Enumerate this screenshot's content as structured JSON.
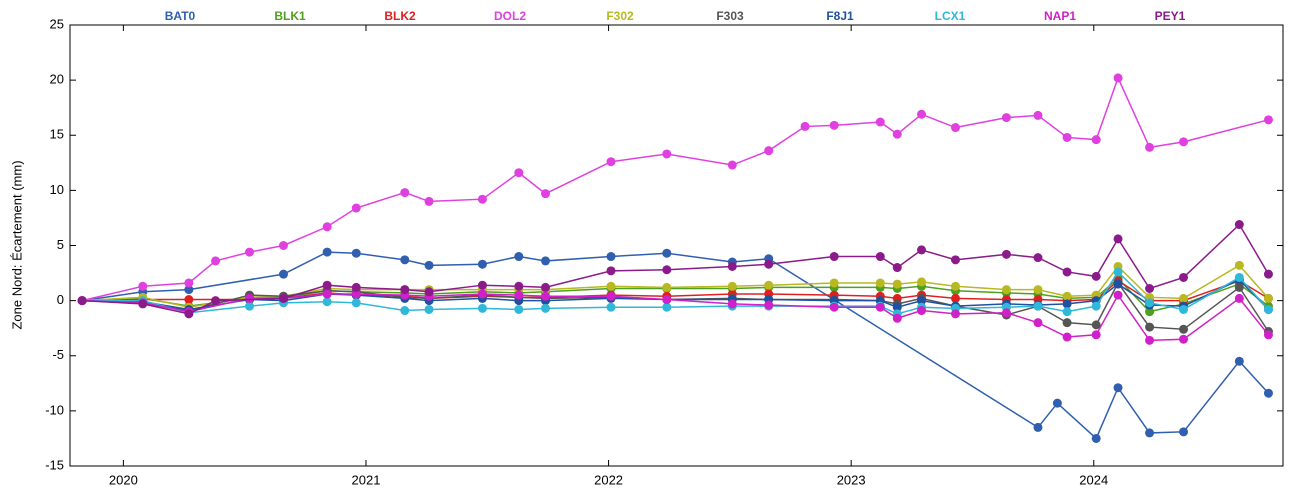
{
  "chart_data": {
    "type": "line",
    "ylabel": "Zone Nord: Écartement (mm)",
    "xlim": [
      2019.78,
      2024.78
    ],
    "xticks": [
      2020,
      2021,
      2022,
      2023,
      2024
    ],
    "ylim": [
      -15,
      25
    ],
    "yticks": [
      -15,
      -10,
      -5,
      0,
      5,
      10,
      15,
      20,
      25
    ],
    "grid": false,
    "legend": "top",
    "series": [
      {
        "name": "BAT0",
        "color": "#2f5fae",
        "x": [
          2019.83,
          2020.08,
          2020.27,
          2020.66,
          2020.84,
          2020.96,
          2021.16,
          2021.26,
          2021.48,
          2021.63,
          2021.74,
          2022.01,
          2022.24,
          2022.51,
          2022.66,
          2023.77,
          2023.85,
          2024.01,
          2024.1,
          2024.23,
          2024.37,
          2024.6,
          2024.72
        ],
        "values": [
          0,
          0.8,
          1.0,
          2.4,
          4.4,
          4.3,
          3.7,
          3.2,
          3.3,
          4.0,
          3.6,
          4.0,
          4.3,
          3.5,
          3.8,
          -11.5,
          -9.3,
          -12.5,
          -7.9,
          -12.0,
          -11.9,
          -5.5,
          -8.4
        ]
      },
      {
        "name": "BLK1",
        "color": "#4fa020",
        "x": [
          2019.83,
          2020.08,
          2020.27,
          2020.52,
          2020.66,
          2020.84,
          2020.96,
          2021.16,
          2021.26,
          2021.48,
          2021.63,
          2021.74,
          2022.01,
          2022.24,
          2022.51,
          2022.66,
          2022.93,
          2023.12,
          2023.19,
          2023.29,
          2023.43,
          2023.64,
          2023.77,
          2023.89,
          2024.01,
          2024.1,
          2024.23,
          2024.37,
          2024.6,
          2024.72
        ],
        "values": [
          0,
          0.2,
          -0.5,
          0.2,
          0.3,
          0.9,
          0.8,
          0.7,
          0.6,
          0.8,
          0.7,
          0.8,
          1.1,
          1.1,
          1.1,
          1.2,
          1.2,
          1.2,
          1.1,
          1.3,
          0.9,
          0.7,
          0.6,
          0.2,
          0.3,
          2.0,
          -1.0,
          -0.3,
          1.5,
          -0.5
        ]
      },
      {
        "name": "BLK2",
        "color": "#e02020",
        "x": [
          2019.83,
          2020.08,
          2020.27,
          2020.52,
          2020.66,
          2020.84,
          2020.96,
          2021.16,
          2021.26,
          2021.48,
          2021.63,
          2021.74,
          2022.01,
          2022.24,
          2022.51,
          2022.66,
          2022.93,
          2023.12,
          2023.19,
          2023.29,
          2023.43,
          2023.64,
          2023.77,
          2023.89,
          2024.01,
          2024.1,
          2024.23,
          2024.37,
          2024.6,
          2024.72
        ],
        "values": [
          0,
          0.1,
          0.1,
          0.1,
          0.2,
          0.7,
          0.5,
          0.4,
          0.2,
          0.4,
          0.3,
          0.3,
          0.5,
          0.4,
          0.6,
          0.6,
          0.5,
          0.4,
          0.2,
          0.5,
          0.2,
          0.1,
          0.1,
          0.0,
          0.1,
          1.8,
          0.0,
          0.0,
          1.8,
          0.2
        ]
      },
      {
        "name": "DOL2",
        "color": "#e040e0",
        "x": [
          2019.83,
          2020.08,
          2020.27,
          2020.38,
          2020.52,
          2020.66,
          2020.84,
          2020.96,
          2021.16,
          2021.26,
          2021.48,
          2021.63,
          2021.74,
          2022.01,
          2022.24,
          2022.51,
          2022.66,
          2022.81,
          2022.93,
          2023.12,
          2023.19,
          2023.29,
          2023.43,
          2023.64,
          2023.77,
          2023.89,
          2024.01,
          2024.1,
          2024.23,
          2024.37,
          2024.72
        ],
        "values": [
          0,
          1.3,
          1.6,
          3.6,
          4.4,
          5.0,
          6.7,
          8.4,
          9.8,
          9.0,
          9.2,
          11.6,
          9.7,
          12.6,
          13.3,
          12.3,
          13.6,
          15.8,
          15.9,
          16.2,
          15.1,
          16.9,
          15.7,
          16.6,
          16.8,
          14.8,
          14.6,
          20.2,
          13.9,
          14.4,
          16.4
        ]
      },
      {
        "name": "F302",
        "color": "#b8b820",
        "x": [
          2019.83,
          2020.08,
          2020.27,
          2020.52,
          2020.66,
          2020.84,
          2020.96,
          2021.16,
          2021.26,
          2021.48,
          2021.63,
          2021.74,
          2022.01,
          2022.24,
          2022.51,
          2022.66,
          2022.93,
          2023.12,
          2023.19,
          2023.29,
          2023.43,
          2023.64,
          2023.77,
          2023.89,
          2024.01,
          2024.1,
          2024.23,
          2024.37,
          2024.6,
          2024.72
        ],
        "values": [
          0,
          0.3,
          -0.6,
          0.3,
          0.4,
          1.1,
          1.0,
          1.0,
          1.0,
          1.0,
          1.0,
          1.0,
          1.3,
          1.2,
          1.3,
          1.4,
          1.6,
          1.6,
          1.5,
          1.7,
          1.3,
          1.0,
          1.0,
          0.4,
          0.5,
          3.1,
          0.3,
          0.2,
          3.2,
          0.2
        ]
      },
      {
        "name": "F303",
        "color": "#555555",
        "x": [
          2019.83,
          2020.08,
          2020.27,
          2020.52,
          2020.66,
          2020.84,
          2020.96,
          2021.16,
          2021.26,
          2021.48,
          2021.63,
          2021.74,
          2022.01,
          2022.24,
          2022.51,
          2022.66,
          2022.93,
          2023.12,
          2023.19,
          2023.29,
          2023.43,
          2023.64,
          2023.77,
          2023.89,
          2024.01,
          2024.1,
          2024.23,
          2024.37,
          2024.6,
          2024.72
        ],
        "values": [
          0,
          -0.2,
          -0.9,
          0.5,
          0.4,
          0.9,
          0.8,
          0.3,
          0.2,
          0.5,
          0.3,
          0.2,
          0.3,
          0.1,
          0.2,
          0.1,
          0.1,
          0.0,
          -0.3,
          0.2,
          -0.5,
          -1.3,
          -0.5,
          -2.0,
          -2.2,
          1.6,
          -2.4,
          -2.6,
          1.2,
          -2.8
        ]
      },
      {
        "name": "F8J1",
        "color": "#2050a0",
        "x": [
          2019.83,
          2020.08,
          2020.27,
          2020.52,
          2020.66,
          2020.84,
          2020.96,
          2021.16,
          2021.26,
          2021.48,
          2021.63,
          2021.74,
          2022.01,
          2022.24,
          2022.51,
          2022.66,
          2022.93,
          2023.12,
          2023.19,
          2023.29,
          2023.43,
          2023.64,
          2023.77,
          2023.89,
          2024.01,
          2024.1,
          2024.23,
          2024.37,
          2024.6,
          2024.72
        ],
        "values": [
          0,
          -0.1,
          -0.8,
          0.1,
          0.0,
          0.6,
          0.5,
          0.2,
          0.0,
          0.2,
          0.0,
          0.0,
          0.2,
          0.1,
          0.1,
          0.1,
          0.0,
          0.0,
          -0.6,
          0.0,
          -0.5,
          -0.3,
          -0.4,
          -0.3,
          0.0,
          1.5,
          -0.4,
          -0.5,
          1.9,
          -0.8
        ]
      },
      {
        "name": "LCX1",
        "color": "#30b8d8",
        "x": [
          2019.83,
          2020.08,
          2020.27,
          2020.52,
          2020.66,
          2020.84,
          2020.96,
          2021.16,
          2021.26,
          2021.48,
          2021.63,
          2021.74,
          2022.01,
          2022.24,
          2022.51,
          2022.66,
          2022.93,
          2023.12,
          2023.19,
          2023.29,
          2023.43,
          2023.64,
          2023.77,
          2023.89,
          2024.01,
          2024.1,
          2024.23,
          2024.37,
          2024.6,
          2024.72
        ],
        "values": [
          0,
          0,
          -1.1,
          -0.5,
          -0.2,
          -0.1,
          -0.2,
          -0.9,
          -0.8,
          -0.7,
          -0.8,
          -0.7,
          -0.6,
          -0.6,
          -0.5,
          -0.5,
          -0.5,
          -0.5,
          -1.2,
          -0.6,
          -0.7,
          -0.6,
          -0.5,
          -1.0,
          -0.5,
          2.6,
          -0.2,
          -0.8,
          2.1,
          -0.8
        ]
      },
      {
        "name": "NAP1",
        "color": "#d020c8",
        "x": [
          2019.83,
          2020.08,
          2020.27,
          2020.52,
          2020.66,
          2020.84,
          2020.96,
          2021.16,
          2021.26,
          2021.48,
          2021.63,
          2021.74,
          2022.01,
          2022.24,
          2022.51,
          2022.66,
          2022.93,
          2023.12,
          2023.19,
          2023.29,
          2023.43,
          2023.64,
          2023.77,
          2023.89,
          2024.01,
          2024.1,
          2024.23,
          2024.37,
          2024.6,
          2024.72
        ],
        "values": [
          0,
          -0.2,
          -1.0,
          0.2,
          0.2,
          0.6,
          0.6,
          0.5,
          0.4,
          0.6,
          0.5,
          0.4,
          0.4,
          0.1,
          -0.3,
          -0.4,
          -0.6,
          -0.6,
          -1.6,
          -0.9,
          -1.2,
          -1.1,
          -2.0,
          -3.3,
          -3.1,
          0.5,
          -3.6,
          -3.5,
          0.2,
          -3.1
        ]
      },
      {
        "name": "PEY1",
        "color": "#8b1a8b",
        "x": [
          2019.83,
          2020.08,
          2020.27,
          2020.38,
          2020.66,
          2020.84,
          2020.96,
          2021.16,
          2021.26,
          2021.48,
          2021.63,
          2021.74,
          2022.01,
          2022.24,
          2022.51,
          2022.66,
          2022.93,
          2023.12,
          2023.19,
          2023.29,
          2023.43,
          2023.64,
          2023.77,
          2023.89,
          2024.01,
          2024.1,
          2024.23,
          2024.37,
          2024.6,
          2024.72
        ],
        "values": [
          0,
          -0.3,
          -1.2,
          0,
          0.2,
          1.4,
          1.2,
          1.0,
          0.8,
          1.4,
          1.3,
          1.2,
          2.7,
          2.8,
          3.1,
          3.3,
          4.0,
          4.0,
          3.0,
          4.6,
          3.7,
          4.2,
          3.9,
          2.6,
          2.2,
          5.6,
          1.1,
          2.1,
          6.9,
          2.4
        ]
      }
    ]
  }
}
